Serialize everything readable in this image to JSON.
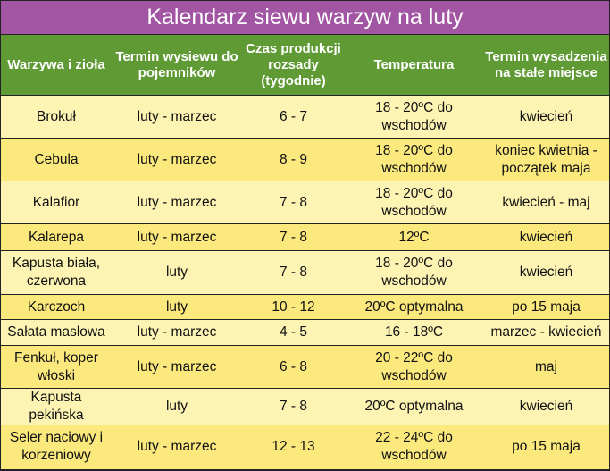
{
  "title": "Kalendarz siewu warzyw na luty",
  "colors": {
    "title_bg": "#a155a2",
    "header_bg": "#5f9a35",
    "row_light": "#fdf4b4",
    "row_dark": "#fbe97e"
  },
  "headers": [
    "Warzywa i zioła",
    "Termin wysiewu do pojemników",
    "Czas produkcji rozsady (tygodnie)",
    "Temperatura",
    "Termin wysadzenia na stałe miejsce"
  ],
  "rows": [
    [
      "Brokuł",
      "luty - marzec",
      "6 - 7",
      "18 - 20ºC do wschodów",
      "kwiecień"
    ],
    [
      "Cebula",
      "luty - marzec",
      "8 - 9",
      "18 - 20ºC do wschodów",
      "koniec kwietnia - początek maja"
    ],
    [
      "Kalafior",
      "luty - marzec",
      "7 - 8",
      "18 - 20ºC do wschodów",
      "kwiecień - maj"
    ],
    [
      "Kalarepa",
      "luty - marzec",
      "7 - 8",
      "12ºC",
      "kwiecień"
    ],
    [
      "Kapusta biała, czerwona",
      "luty",
      "7 - 8",
      "18 - 20ºC do wschodów",
      "kwiecień"
    ],
    [
      "Karczoch",
      "luty",
      "10 - 12",
      "20ºC optymalna",
      "po 15 maja"
    ],
    [
      "Sałata masłowa",
      "luty - marzec",
      "4 - 5",
      "16 - 18ºC",
      "marzec - kwiecień"
    ],
    [
      "Fenkuł, koper włoski",
      "luty - marzec",
      "6 - 8",
      "20 - 22ºC do wschodów",
      "maj"
    ],
    [
      "Kapusta pekińska",
      "luty",
      "7 - 8",
      "20ºC optymalna",
      "kwiecień"
    ],
    [
      "Seler naciowy i korzeniowy",
      "luty - marzec",
      "12 - 13",
      "22 - 24ºC do wschodów",
      "po 15 maja"
    ]
  ]
}
